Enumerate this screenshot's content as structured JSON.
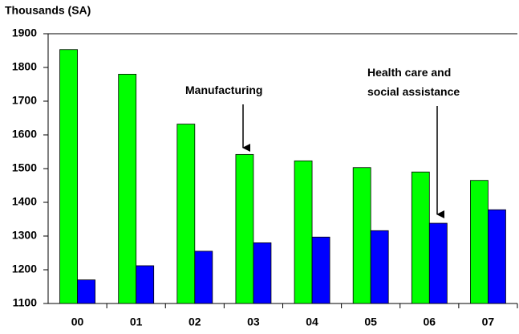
{
  "chart_data": {
    "type": "bar",
    "title": "Thousands (SA)",
    "categories": [
      "00",
      "01",
      "02",
      "03",
      "04",
      "05",
      "06",
      "07"
    ],
    "series": [
      {
        "name": "Manufacturing",
        "color": "#00ff00",
        "values": [
          1853,
          1780,
          1632,
          1542,
          1523,
          1503,
          1490,
          1465
        ]
      },
      {
        "name": "Health care and social assistance",
        "color": "#0000ff",
        "values": [
          1170,
          1212,
          1255,
          1280,
          1297,
          1316,
          1338,
          1378
        ]
      }
    ],
    "ylim": [
      1100,
      1900
    ],
    "yticks": [
      1100,
      1200,
      1300,
      1400,
      1500,
      1600,
      1700,
      1800,
      1900
    ],
    "grid": false
  }
}
